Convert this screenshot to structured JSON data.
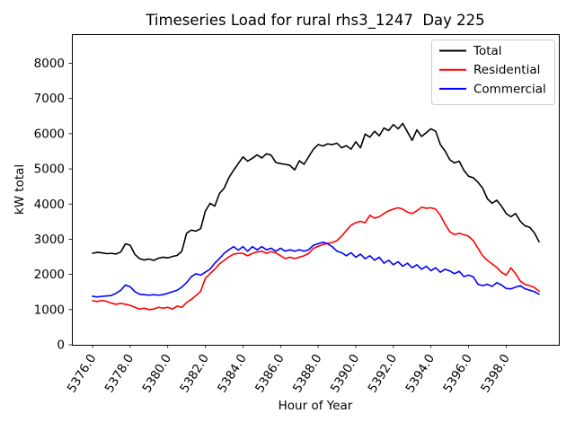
{
  "figure": {
    "title": "Timeseries Load for rural rhs3_1247  Day 225",
    "xlabel": "Hour of Year",
    "ylabel": "kW total"
  },
  "chart_data": {
    "type": "line",
    "title": "Timeseries Load for rural rhs3_1247  Day 225",
    "xlabel": "Hour of Year",
    "ylabel": "kW total",
    "grid": false,
    "xlim": [
      5374.9,
      5400.8
    ],
    "ylim": [
      0,
      8830
    ],
    "xticks": [
      5376,
      5378,
      5380,
      5382,
      5384,
      5386,
      5388,
      5390,
      5392,
      5394,
      5396,
      5398
    ],
    "xtick_labels": [
      "5376.0",
      "5378.0",
      "5380.0",
      "5382.0",
      "5384.0",
      "5386.0",
      "5388.0",
      "5390.0",
      "5392.0",
      "5394.0",
      "5396.0",
      "5398.0"
    ],
    "xtick_rotation": 58,
    "yticks": [
      0,
      1000,
      2000,
      3000,
      4000,
      5000,
      6000,
      7000,
      8000
    ],
    "ytick_labels": [
      "0",
      "1000",
      "2000",
      "3000",
      "4000",
      "5000",
      "6000",
      "7000",
      "8000"
    ],
    "legend": {
      "location": "upper right",
      "labels": [
        "Total",
        "Residential",
        "Commercial"
      ]
    },
    "x": [
      5376.0,
      5376.25,
      5376.5,
      5376.75,
      5377.0,
      5377.25,
      5377.5,
      5377.75,
      5378.0,
      5378.25,
      5378.5,
      5378.75,
      5379.0,
      5379.25,
      5379.5,
      5379.75,
      5380.0,
      5380.25,
      5380.5,
      5380.75,
      5381.0,
      5381.25,
      5381.5,
      5381.75,
      5382.0,
      5382.25,
      5382.5,
      5382.75,
      5383.0,
      5383.25,
      5383.5,
      5383.75,
      5384.0,
      5384.25,
      5384.5,
      5384.75,
      5385.0,
      5385.25,
      5385.5,
      5385.75,
      5386.0,
      5386.25,
      5386.5,
      5386.75,
      5387.0,
      5387.25,
      5387.5,
      5387.75,
      5388.0,
      5388.25,
      5388.5,
      5388.75,
      5389.0,
      5389.25,
      5389.5,
      5389.75,
      5390.0,
      5390.25,
      5390.5,
      5390.75,
      5391.0,
      5391.25,
      5391.5,
      5391.75,
      5392.0,
      5392.25,
      5392.5,
      5392.75,
      5393.0,
      5393.25,
      5393.5,
      5393.75,
      5394.0,
      5394.25,
      5394.5,
      5394.75,
      5395.0,
      5395.25,
      5395.5,
      5395.75,
      5396.0,
      5396.25,
      5396.5,
      5396.75,
      5397.0,
      5397.25,
      5397.5,
      5397.75,
      5398.0,
      5398.25,
      5398.5,
      5398.75,
      5399.0,
      5399.25,
      5399.5,
      5399.75
    ],
    "series": [
      {
        "name": "Total",
        "color": "#000000",
        "values": [
          2600,
          2630,
          2615,
          2590,
          2600,
          2580,
          2640,
          2870,
          2830,
          2570,
          2450,
          2410,
          2440,
          2400,
          2460,
          2490,
          2470,
          2510,
          2540,
          2660,
          3170,
          3260,
          3230,
          3300,
          3800,
          4020,
          3940,
          4300,
          4450,
          4750,
          4960,
          5150,
          5340,
          5220,
          5300,
          5400,
          5310,
          5430,
          5390,
          5180,
          5150,
          5130,
          5100,
          4970,
          5230,
          5130,
          5350,
          5560,
          5690,
          5650,
          5710,
          5690,
          5730,
          5600,
          5660,
          5560,
          5770,
          5600,
          5990,
          5900,
          6070,
          5940,
          6160,
          6090,
          6260,
          6140,
          6290,
          6050,
          5810,
          6110,
          5920,
          6030,
          6140,
          6070,
          5690,
          5510,
          5260,
          5170,
          5220,
          4960,
          4790,
          4750,
          4620,
          4450,
          4150,
          4020,
          4110,
          3940,
          3730,
          3640,
          3730,
          3510,
          3380,
          3340,
          3180,
          2930
        ]
      },
      {
        "name": "Residential",
        "color": "#ff0000",
        "values": [
          1250,
          1230,
          1260,
          1235,
          1185,
          1150,
          1180,
          1150,
          1125,
          1065,
          1015,
          1040,
          1000,
          1015,
          1065,
          1040,
          1065,
          1015,
          1100,
          1065,
          1200,
          1290,
          1400,
          1520,
          1890,
          2020,
          2150,
          2300,
          2400,
          2500,
          2575,
          2600,
          2600,
          2530,
          2600,
          2640,
          2660,
          2600,
          2650,
          2610,
          2530,
          2450,
          2490,
          2450,
          2490,
          2530,
          2600,
          2740,
          2800,
          2850,
          2880,
          2910,
          2960,
          3090,
          3250,
          3400,
          3470,
          3510,
          3470,
          3680,
          3600,
          3640,
          3730,
          3810,
          3855,
          3895,
          3855,
          3770,
          3730,
          3810,
          3910,
          3880,
          3895,
          3855,
          3680,
          3430,
          3215,
          3130,
          3170,
          3130,
          3085,
          2960,
          2745,
          2530,
          2400,
          2300,
          2200,
          2060,
          1980,
          2190,
          2020,
          1810,
          1720,
          1680,
          1630,
          1520
        ]
      },
      {
        "name": "Commercial",
        "color": "#0000ff",
        "values": [
          1380,
          1360,
          1375,
          1390,
          1400,
          1465,
          1550,
          1700,
          1650,
          1510,
          1440,
          1425,
          1410,
          1425,
          1410,
          1425,
          1465,
          1510,
          1550,
          1640,
          1765,
          1935,
          2020,
          1980,
          2065,
          2150,
          2320,
          2450,
          2600,
          2700,
          2790,
          2690,
          2790,
          2660,
          2790,
          2700,
          2790,
          2700,
          2745,
          2660,
          2745,
          2660,
          2700,
          2660,
          2703,
          2660,
          2703,
          2830,
          2873,
          2915,
          2873,
          2788,
          2660,
          2617,
          2532,
          2617,
          2489,
          2575,
          2447,
          2532,
          2404,
          2489,
          2319,
          2404,
          2276,
          2361,
          2233,
          2319,
          2191,
          2276,
          2148,
          2233,
          2106,
          2191,
          2063,
          2148,
          2100,
          2020,
          2090,
          1940,
          1980,
          1930,
          1720,
          1680,
          1720,
          1660,
          1765,
          1700,
          1600,
          1590,
          1640,
          1680,
          1594,
          1551,
          1509,
          1440
        ]
      }
    ]
  }
}
